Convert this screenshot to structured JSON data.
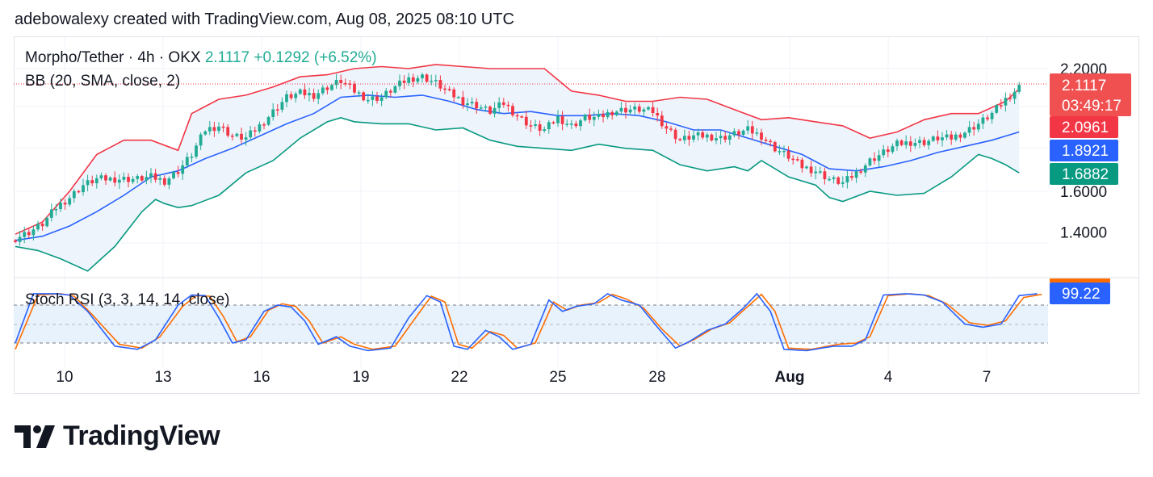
{
  "header": {
    "text": "adebowalexy created with TradingView.com, Aug 08, 2025 08:10 UTC"
  },
  "legend": {
    "symbol": "Morpho/Tether · 4h · OKX",
    "last": "2.1117",
    "change": "+0.1292 (+6.52%)",
    "bb": "BB (20, SMA, close, 2)",
    "stoch": "Stoch RSI (3, 3, 14, 14, close)"
  },
  "labels": {
    "price": "2.1117",
    "countdown": "03:49:17",
    "bb_upper": "2.0961",
    "bb_basis": "1.8921",
    "bb_lower": "1.6882",
    "stoch": "99.22"
  },
  "logo": {
    "text": "TradingView"
  },
  "colors": {
    "up": "#22ab94",
    "down": "#f23645",
    "bb_upper": "#f23645",
    "bb_basis": "#2962ff",
    "bb_lower": "#089981",
    "bb_fill": "#eef4fc",
    "k_line": "#2962ff",
    "d_line": "#ff6d00",
    "price_label": "#f05050",
    "stoch_band": "#e8f2fd"
  },
  "chart_data": [
    {
      "type": "candlestick",
      "title": "Morpho/Tether · 4h · OKX",
      "y_ticks": [
        "2.2000",
        "1.6000",
        "1.4000"
      ],
      "ylim": [
        1.3,
        2.28
      ],
      "x_ticks": [
        "10",
        "13",
        "16",
        "19",
        "22",
        "25",
        "28",
        "Aug",
        "4",
        "7"
      ],
      "last_price": 2.1117,
      "change": "+0.1292 (+6.52%)",
      "close_series": [
        [
          0,
          1.37
        ],
        [
          3,
          1.4
        ],
        [
          6,
          1.44
        ],
        [
          9,
          1.52
        ],
        [
          12,
          1.57
        ],
        [
          15,
          1.63
        ],
        [
          18,
          1.66
        ],
        [
          21,
          1.66
        ],
        [
          24,
          1.66
        ],
        [
          27,
          1.66
        ],
        [
          30,
          1.67
        ],
        [
          33,
          1.65
        ],
        [
          36,
          1.7
        ],
        [
          39,
          1.78
        ],
        [
          42,
          1.9
        ],
        [
          45,
          1.92
        ],
        [
          48,
          1.87
        ],
        [
          51,
          1.86
        ],
        [
          54,
          1.92
        ],
        [
          57,
          1.99
        ],
        [
          60,
          2.06
        ],
        [
          63,
          2.08
        ],
        [
          66,
          2.07
        ],
        [
          69,
          2.11
        ],
        [
          72,
          2.14
        ],
        [
          75,
          2.09
        ],
        [
          78,
          2.05
        ],
        [
          81,
          2.06
        ],
        [
          84,
          2.11
        ],
        [
          87,
          2.15
        ],
        [
          90,
          2.16
        ],
        [
          93,
          2.13
        ],
        [
          96,
          2.08
        ],
        [
          99,
          2.04
        ],
        [
          102,
          2.02
        ],
        [
          105,
          1.99
        ],
        [
          108,
          2.03
        ],
        [
          111,
          1.97
        ],
        [
          114,
          1.92
        ],
        [
          117,
          1.9
        ],
        [
          120,
          1.96
        ],
        [
          123,
          1.92
        ],
        [
          126,
          1.96
        ],
        [
          129,
          1.96
        ],
        [
          132,
          1.99
        ],
        [
          135,
          2.0
        ],
        [
          138,
          2.0
        ],
        [
          141,
          1.99
        ],
        [
          144,
          1.91
        ],
        [
          147,
          1.85
        ],
        [
          150,
          1.87
        ],
        [
          153,
          1.87
        ],
        [
          156,
          1.86
        ],
        [
          159,
          1.88
        ],
        [
          162,
          1.9
        ],
        [
          165,
          1.87
        ],
        [
          168,
          1.81
        ],
        [
          171,
          1.77
        ],
        [
          174,
          1.72
        ],
        [
          177,
          1.7
        ],
        [
          180,
          1.66
        ],
        [
          183,
          1.64
        ],
        [
          186,
          1.69
        ],
        [
          189,
          1.75
        ],
        [
          192,
          1.79
        ],
        [
          195,
          1.83
        ],
        [
          198,
          1.84
        ],
        [
          201,
          1.84
        ],
        [
          204,
          1.86
        ],
        [
          207,
          1.86
        ],
        [
          210,
          1.89
        ],
        [
          213,
          1.93
        ],
        [
          216,
          1.98
        ],
        [
          219,
          2.05
        ],
        [
          222,
          2.11
        ]
      ],
      "bb_upper": [
        [
          0,
          1.39
        ],
        [
          6,
          1.45
        ],
        [
          12,
          1.6
        ],
        [
          18,
          1.78
        ],
        [
          24,
          1.85
        ],
        [
          30,
          1.85
        ],
        [
          36,
          1.8
        ],
        [
          39,
          1.98
        ],
        [
          45,
          2.05
        ],
        [
          51,
          2.07
        ],
        [
          57,
          2.11
        ],
        [
          63,
          2.16
        ],
        [
          69,
          2.17
        ],
        [
          75,
          2.2
        ],
        [
          81,
          2.21
        ],
        [
          87,
          2.2
        ],
        [
          93,
          2.22
        ],
        [
          99,
          2.21
        ],
        [
          105,
          2.2
        ],
        [
          111,
          2.2
        ],
        [
          117,
          2.2
        ],
        [
          123,
          2.09
        ],
        [
          129,
          2.07
        ],
        [
          135,
          2.04
        ],
        [
          141,
          2.04
        ],
        [
          147,
          2.06
        ],
        [
          153,
          2.05
        ],
        [
          159,
          2.0
        ],
        [
          165,
          1.95
        ],
        [
          171,
          1.96
        ],
        [
          177,
          1.94
        ],
        [
          183,
          1.92
        ],
        [
          189,
          1.86
        ],
        [
          195,
          1.89
        ],
        [
          201,
          1.95
        ],
        [
          207,
          1.98
        ],
        [
          213,
          1.98
        ],
        [
          219,
          2.04
        ],
        [
          222,
          2.1
        ]
      ],
      "bb_basis": [
        [
          0,
          1.36
        ],
        [
          6,
          1.38
        ],
        [
          12,
          1.43
        ],
        [
          18,
          1.5
        ],
        [
          24,
          1.58
        ],
        [
          30,
          1.67
        ],
        [
          36,
          1.7
        ],
        [
          42,
          1.76
        ],
        [
          48,
          1.81
        ],
        [
          54,
          1.87
        ],
        [
          60,
          1.93
        ],
        [
          66,
          1.98
        ],
        [
          72,
          2.06
        ],
        [
          78,
          2.07
        ],
        [
          84,
          2.06
        ],
        [
          90,
          2.07
        ],
        [
          96,
          2.04
        ],
        [
          102,
          2.0
        ],
        [
          108,
          1.98
        ],
        [
          114,
          1.99
        ],
        [
          120,
          1.97
        ],
        [
          126,
          1.97
        ],
        [
          132,
          1.98
        ],
        [
          138,
          1.97
        ],
        [
          144,
          1.94
        ],
        [
          150,
          1.9
        ],
        [
          156,
          1.9
        ],
        [
          162,
          1.86
        ],
        [
          168,
          1.82
        ],
        [
          174,
          1.78
        ],
        [
          180,
          1.71
        ],
        [
          186,
          1.7
        ],
        [
          192,
          1.72
        ],
        [
          198,
          1.75
        ],
        [
          204,
          1.79
        ],
        [
          210,
          1.82
        ],
        [
          216,
          1.85
        ],
        [
          222,
          1.89
        ]
      ],
      "bb_lower": [
        [
          0,
          1.33
        ],
        [
          5,
          1.31
        ],
        [
          10,
          1.27
        ],
        [
          16,
          1.21
        ],
        [
          22,
          1.33
        ],
        [
          28,
          1.5
        ],
        [
          31,
          1.56
        ],
        [
          33,
          1.54
        ],
        [
          36,
          1.52
        ],
        [
          39,
          1.53
        ],
        [
          45,
          1.58
        ],
        [
          51,
          1.69
        ],
        [
          57,
          1.75
        ],
        [
          63,
          1.86
        ],
        [
          69,
          1.94
        ],
        [
          72,
          1.96
        ],
        [
          75,
          1.94
        ],
        [
          81,
          1.93
        ],
        [
          87,
          1.93
        ],
        [
          93,
          1.9
        ],
        [
          99,
          1.91
        ],
        [
          105,
          1.85
        ],
        [
          111,
          1.82
        ],
        [
          117,
          1.81
        ],
        [
          123,
          1.8
        ],
        [
          129,
          1.83
        ],
        [
          135,
          1.81
        ],
        [
          141,
          1.8
        ],
        [
          147,
          1.73
        ],
        [
          153,
          1.7
        ],
        [
          159,
          1.72
        ],
        [
          162,
          1.7
        ],
        [
          165,
          1.75
        ],
        [
          171,
          1.67
        ],
        [
          177,
          1.63
        ],
        [
          180,
          1.57
        ],
        [
          183,
          1.55
        ],
        [
          189,
          1.6
        ],
        [
          195,
          1.58
        ],
        [
          201,
          1.59
        ],
        [
          207,
          1.67
        ],
        [
          213,
          1.78
        ],
        [
          216,
          1.76
        ],
        [
          219,
          1.73
        ],
        [
          222,
          1.69
        ]
      ],
      "bb_upper_last": 2.0961,
      "bb_basis_last": 1.8921,
      "bb_lower_last": 1.6882,
      "legend": [
        "BB (20, SMA, close, 2)"
      ]
    },
    {
      "type": "line",
      "title": "Stoch RSI (3, 3, 14, 14, close)",
      "ylim": [
        0,
        100
      ],
      "bands": [
        80,
        50,
        20
      ],
      "series": [
        {
          "name": "K",
          "values": [
            [
              0,
              20
            ],
            [
              4,
              98
            ],
            [
              9,
              98
            ],
            [
              12,
              96
            ],
            [
              16,
              70
            ],
            [
              22,
              15
            ],
            [
              27,
              10
            ],
            [
              31,
              25
            ],
            [
              36,
              80
            ],
            [
              39,
              96
            ],
            [
              42,
              95
            ],
            [
              45,
              60
            ],
            [
              48,
              20
            ],
            [
              51,
              25
            ],
            [
              55,
              70
            ],
            [
              58,
              80
            ],
            [
              61,
              77
            ],
            [
              64,
              55
            ],
            [
              67,
              18
            ],
            [
              71,
              30
            ],
            [
              74,
              15
            ],
            [
              78,
              8
            ],
            [
              83,
              12
            ],
            [
              87,
              60
            ],
            [
              91,
              95
            ],
            [
              94,
              85
            ],
            [
              97,
              15
            ],
            [
              100,
              10
            ],
            [
              104,
              40
            ],
            [
              107,
              30
            ],
            [
              110,
              10
            ],
            [
              114,
              18
            ],
            [
              118,
              88
            ],
            [
              121,
              70
            ],
            [
              124,
              78
            ],
            [
              128,
              82
            ],
            [
              131,
              98
            ],
            [
              134,
              88
            ],
            [
              138,
              80
            ],
            [
              142,
              45
            ],
            [
              146,
              12
            ],
            [
              149,
              22
            ],
            [
              153,
              40
            ],
            [
              157,
              50
            ],
            [
              161,
              75
            ],
            [
              164,
              98
            ],
            [
              167,
              70
            ],
            [
              170,
              10
            ],
            [
              175,
              8
            ],
            [
              181,
              15
            ],
            [
              185,
              15
            ],
            [
              188,
              25
            ],
            [
              192,
              96
            ],
            [
              197,
              98
            ],
            [
              201,
              96
            ],
            [
              205,
              85
            ],
            [
              210,
              50
            ],
            [
              214,
              45
            ],
            [
              218,
              50
            ],
            [
              222,
              95
            ],
            [
              226,
              98
            ]
          ]
        },
        {
          "name": "D",
          "values": [
            [
              0,
              10
            ],
            [
              5,
              96
            ],
            [
              10,
              98
            ],
            [
              13,
              94
            ],
            [
              17,
              65
            ],
            [
              23,
              18
            ],
            [
              28,
              12
            ],
            [
              32,
              30
            ],
            [
              37,
              78
            ],
            [
              40,
              95
            ],
            [
              43,
              94
            ],
            [
              46,
              62
            ],
            [
              49,
              22
            ],
            [
              52,
              30
            ],
            [
              56,
              72
            ],
            [
              59,
              82
            ],
            [
              62,
              78
            ],
            [
              65,
              55
            ],
            [
              68,
              20
            ],
            [
              72,
              30
            ],
            [
              75,
              18
            ],
            [
              79,
              10
            ],
            [
              84,
              15
            ],
            [
              88,
              55
            ],
            [
              92,
              94
            ],
            [
              95,
              85
            ],
            [
              98,
              18
            ],
            [
              101,
              12
            ],
            [
              105,
              38
            ],
            [
              108,
              32
            ],
            [
              111,
              12
            ],
            [
              115,
              20
            ],
            [
              119,
              85
            ],
            [
              122,
              72
            ],
            [
              125,
              80
            ],
            [
              129,
              84
            ],
            [
              132,
              97
            ],
            [
              135,
              90
            ],
            [
              139,
              75
            ],
            [
              143,
              42
            ],
            [
              147,
              15
            ],
            [
              150,
              25
            ],
            [
              154,
              42
            ],
            [
              158,
              52
            ],
            [
              162,
              78
            ],
            [
              165,
              97
            ],
            [
              168,
              70
            ],
            [
              171,
              12
            ],
            [
              176,
              10
            ],
            [
              182,
              18
            ],
            [
              186,
              20
            ],
            [
              189,
              30
            ],
            [
              193,
              95
            ],
            [
              198,
              98
            ],
            [
              202,
              95
            ],
            [
              206,
              82
            ],
            [
              211,
              52
            ],
            [
              215,
              48
            ],
            [
              219,
              55
            ],
            [
              223,
              92
            ],
            [
              227,
              97
            ]
          ]
        }
      ],
      "last_value": 99.22
    }
  ]
}
